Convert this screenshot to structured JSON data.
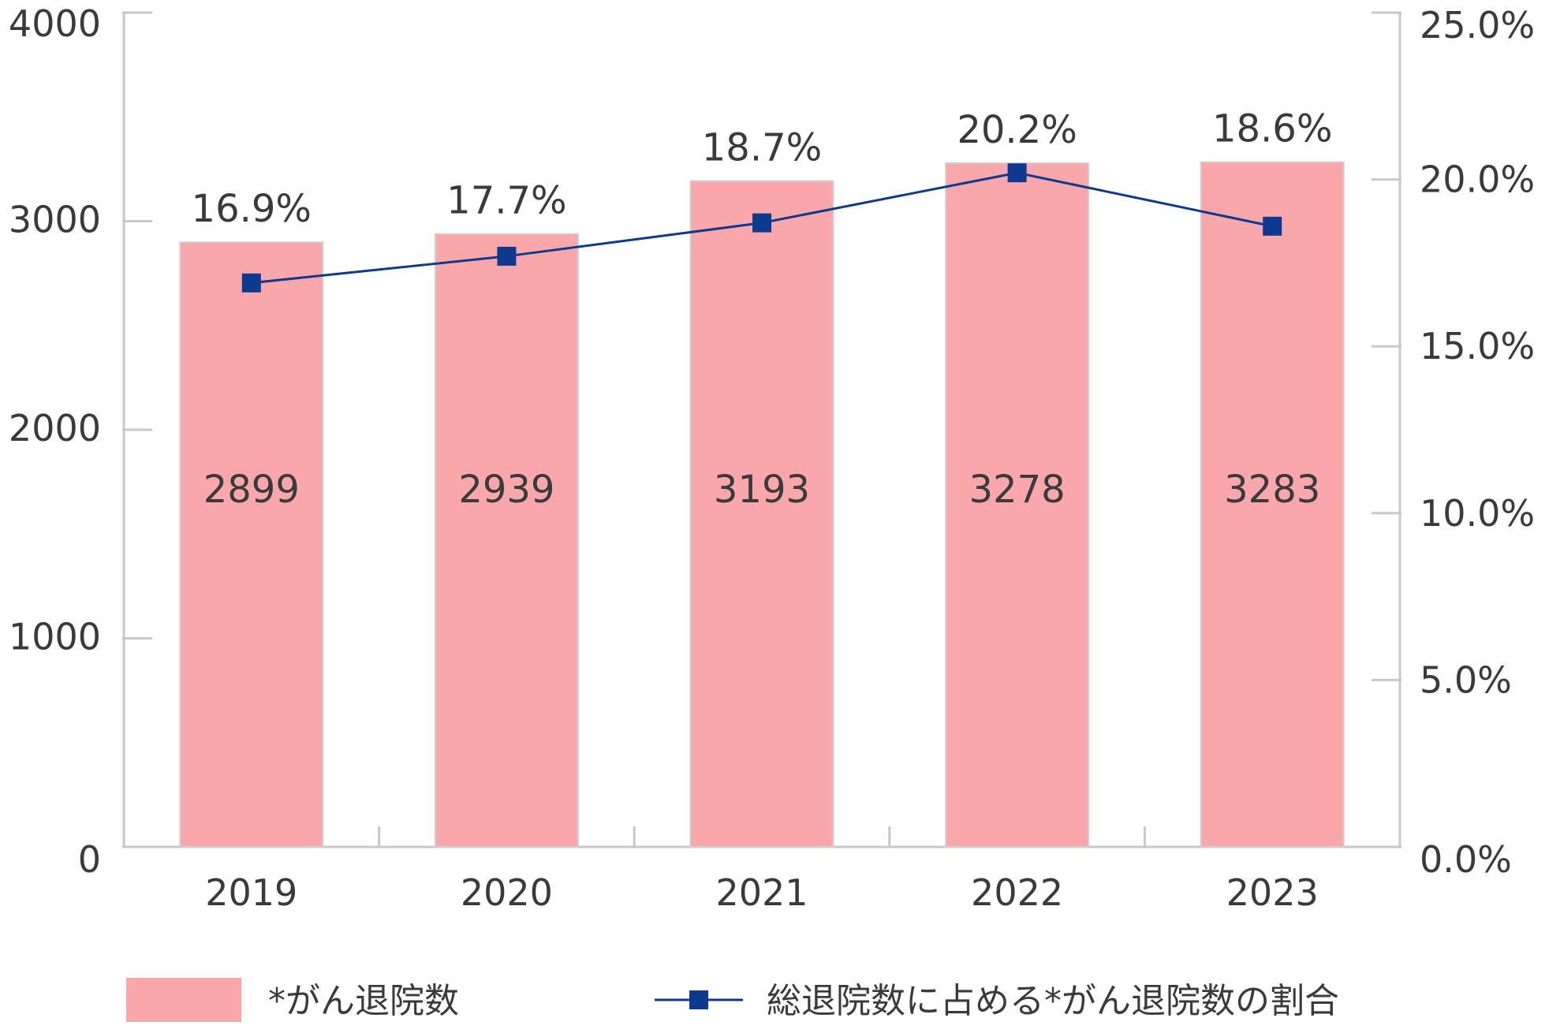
{
  "chart_data": {
    "type": "bar",
    "categories": [
      "2019",
      "2020",
      "2021",
      "2022",
      "2023"
    ],
    "series": [
      {
        "name": "*がん退院数",
        "type": "bar",
        "axis": "left",
        "values": [
          2899,
          2939,
          3193,
          3278,
          3283
        ],
        "labels": [
          "2899",
          "2939",
          "3193",
          "3278",
          "3283"
        ],
        "color": "#f9a7ab"
      },
      {
        "name": "総退院数に占める*がん退院数の割合",
        "type": "line",
        "axis": "right",
        "values": [
          16.9,
          17.7,
          18.7,
          20.2,
          18.6
        ],
        "labels": [
          "16.9%",
          "17.7%",
          "18.7%",
          "20.2%",
          "18.6%"
        ],
        "color": "#0d3a8e",
        "marker": "square"
      }
    ],
    "y_left": {
      "range": [
        0,
        4000
      ],
      "ticks": [
        0,
        1000,
        2000,
        3000,
        4000
      ],
      "tick_labels": [
        "0",
        "1000",
        "2000",
        "3000",
        "4000"
      ]
    },
    "y_right": {
      "range": [
        0,
        25
      ],
      "ticks": [
        0,
        5,
        10,
        15,
        20,
        25
      ],
      "tick_labels": [
        "0.0%",
        "5.0%",
        "10.0%",
        "15.0%",
        "20.0%",
        "25.0%"
      ]
    },
    "legend": {
      "position": "bottom",
      "items": [
        "*がん退院数",
        "総退院数に占める*がん退院数の割合"
      ]
    },
    "colors": {
      "axis": "#c8c8c8",
      "text": "#3a3a3a",
      "bar_border": "#d0d0d0"
    }
  }
}
